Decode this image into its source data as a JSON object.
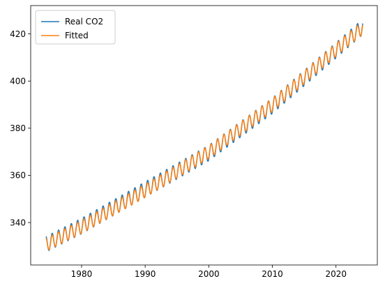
{
  "chart_data": {
    "type": "line",
    "title": "",
    "xlabel": "",
    "ylabel": "",
    "xlim": [
      1972.0,
      2026.5
    ],
    "ylim": [
      322.0,
      432.0
    ],
    "xticks": [
      1980,
      1990,
      2000,
      2010,
      2020
    ],
    "yticks": [
      340,
      360,
      380,
      400,
      420
    ],
    "grid": false,
    "legend": "top-left",
    "x_start": 1974.4,
    "x_end": 2024.2,
    "series": [
      {
        "name": "Real CO2",
        "color": "#1f77b4",
        "seasonal_amplitude_ppm": 3.3,
        "trend_points": [
          {
            "x": 1974.4,
            "y": 330.8
          },
          {
            "x": 1980,
            "y": 338.5
          },
          {
            "x": 1990,
            "y": 354.0
          },
          {
            "x": 2000,
            "y": 369.5
          },
          {
            "x": 2010,
            "y": 389.5
          },
          {
            "x": 2020,
            "y": 413.0
          },
          {
            "x": 2024.2,
            "y": 423.0
          }
        ]
      },
      {
        "name": "Fitted",
        "color": "#ff7f0e",
        "seasonal_amplitude_ppm": 2.8,
        "trend_points": [
          {
            "x": 1974.4,
            "y": 330.6
          },
          {
            "x": 1980,
            "y": 338.2
          },
          {
            "x": 1990,
            "y": 353.5
          },
          {
            "x": 2000,
            "y": 369.8
          },
          {
            "x": 2010,
            "y": 389.8
          },
          {
            "x": 2020,
            "y": 413.2
          },
          {
            "x": 2024.2,
            "y": 422.6
          }
        ]
      }
    ]
  }
}
